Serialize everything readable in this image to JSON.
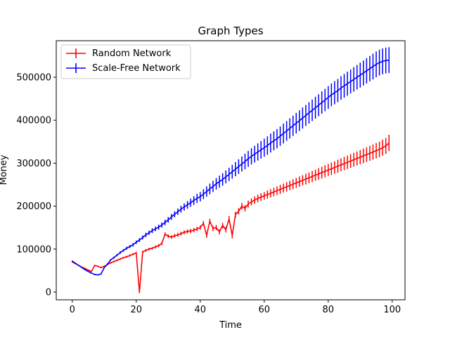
{
  "chart_data": {
    "type": "line",
    "title": "Graph Types",
    "xlabel": "Time",
    "ylabel": "Money",
    "xlim": [
      -5,
      104
    ],
    "ylim": [
      -18000,
      585000
    ],
    "xticks": [
      0,
      20,
      40,
      60,
      80,
      100
    ],
    "yticks": [
      0,
      100000,
      200000,
      300000,
      400000,
      500000
    ],
    "grid": false,
    "legend_position": "top-left",
    "series": [
      {
        "name": "Random Network",
        "color": "#ff0000",
        "x": [
          0,
          1,
          2,
          3,
          4,
          5,
          6,
          7,
          8,
          9,
          10,
          11,
          12,
          13,
          14,
          15,
          16,
          17,
          18,
          19,
          20,
          21,
          22,
          23,
          24,
          25,
          26,
          27,
          28,
          29,
          30,
          31,
          32,
          33,
          34,
          35,
          36,
          37,
          38,
          39,
          40,
          41,
          42,
          43,
          44,
          45,
          46,
          47,
          48,
          49,
          50,
          51,
          52,
          53,
          54,
          55,
          56,
          57,
          58,
          59,
          60,
          61,
          62,
          63,
          64,
          65,
          66,
          67,
          68,
          69,
          70,
          71,
          72,
          73,
          74,
          75,
          76,
          77,
          78,
          79,
          80,
          81,
          82,
          83,
          84,
          85,
          86,
          87,
          88,
          89,
          90,
          91,
          92,
          93,
          94,
          95,
          96,
          97,
          98,
          99
        ],
        "y": [
          70000,
          66000,
          62000,
          58000,
          55000,
          51000,
          48000,
          62000,
          60000,
          57000,
          60000,
          64000,
          68000,
          71000,
          74000,
          77000,
          80000,
          82000,
          85000,
          88000,
          91000,
          0,
          93000,
          97000,
          100000,
          102000,
          105000,
          108000,
          113000,
          135000,
          130000,
          128000,
          131000,
          133000,
          136000,
          139000,
          141000,
          142000,
          144000,
          147000,
          150000,
          160000,
          132000,
          165000,
          148000,
          150000,
          140000,
          155000,
          145000,
          170000,
          132000,
          180000,
          188000,
          200000,
          195000,
          205000,
          210000,
          214000,
          218000,
          221000,
          224000,
          227000,
          230000,
          233000,
          236000,
          239000,
          242000,
          245000,
          248000,
          251000,
          254000,
          257000,
          260000,
          263000,
          266000,
          269000,
          272000,
          275000,
          278000,
          281000,
          284000,
          287000,
          290000,
          293000,
          296000,
          299000,
          302000,
          305000,
          308000,
          311000,
          314000,
          317000,
          320000,
          323000,
          326000,
          329000,
          332000,
          336000,
          340000,
          347000
        ],
        "err": [
          1500,
          1500,
          1500,
          1500,
          1500,
          1500,
          1500,
          1500,
          1500,
          1500,
          1500,
          1500,
          2000,
          2000,
          2000,
          2000,
          2000,
          2500,
          2500,
          2500,
          2500,
          2500,
          3000,
          3000,
          3000,
          3000,
          3500,
          3500,
          3500,
          4000,
          4000,
          4000,
          4000,
          4500,
          4500,
          4500,
          4500,
          5000,
          5000,
          5000,
          5000,
          5500,
          5500,
          5500,
          5500,
          6000,
          6000,
          6000,
          6500,
          6500,
          7000,
          7000,
          7000,
          7500,
          7500,
          8000,
          8000,
          8500,
          8500,
          9000,
          9000,
          9500,
          9500,
          10000,
          10000,
          10500,
          10500,
          11000,
          11000,
          11500,
          11500,
          12000,
          12000,
          12500,
          12500,
          13000,
          13000,
          13500,
          13500,
          14000,
          14000,
          14500,
          14500,
          15000,
          15000,
          15500,
          15500,
          16000,
          16000,
          16500,
          16500,
          17000,
          17000,
          17500,
          17500,
          18000,
          18000,
          18500,
          18500,
          19000
        ]
      },
      {
        "name": "Scale-Free Network",
        "color": "#0000ff",
        "x": [
          0,
          1,
          2,
          3,
          4,
          5,
          6,
          7,
          8,
          9,
          10,
          11,
          12,
          13,
          14,
          15,
          16,
          17,
          18,
          19,
          20,
          21,
          22,
          23,
          24,
          25,
          26,
          27,
          28,
          29,
          30,
          31,
          32,
          33,
          34,
          35,
          36,
          37,
          38,
          39,
          40,
          41,
          42,
          43,
          44,
          45,
          46,
          47,
          48,
          49,
          50,
          51,
          52,
          53,
          54,
          55,
          56,
          57,
          58,
          59,
          60,
          61,
          62,
          63,
          64,
          65,
          66,
          67,
          68,
          69,
          70,
          71,
          72,
          73,
          74,
          75,
          76,
          77,
          78,
          79,
          80,
          81,
          82,
          83,
          84,
          85,
          86,
          87,
          88,
          89,
          90,
          91,
          92,
          93,
          94,
          95,
          96,
          97,
          98,
          99
        ],
        "y": [
          72000,
          67000,
          62000,
          57000,
          52000,
          48000,
          44000,
          41000,
          40000,
          42000,
          57000,
          65000,
          75000,
          80000,
          86000,
          92000,
          97000,
          102000,
          106000,
          110000,
          116000,
          121000,
          127000,
          133000,
          138000,
          143000,
          147000,
          151000,
          156000,
          162000,
          168000,
          175000,
          181000,
          187000,
          193000,
          198000,
          203000,
          208000,
          213000,
          218000,
          222000,
          228000,
          234000,
          240000,
          246000,
          252000,
          257000,
          262000,
          268000,
          274000,
          280000,
          286000,
          292000,
          298000,
          304000,
          310000,
          316000,
          321000,
          326000,
          331000,
          336000,
          341000,
          347000,
          352000,
          357000,
          363000,
          369000,
          375000,
          381000,
          387000,
          393000,
          399000,
          405000,
          411000,
          417000,
          423000,
          429000,
          435000,
          441000,
          447000,
          453000,
          459000,
          464000,
          469000,
          475000,
          480000,
          485000,
          490000,
          495000,
          500000,
          505000,
          510000,
          515000,
          520000,
          525000,
          530000,
          534000,
          537000,
          539000,
          540000
        ],
        "err": [
          1500,
          1500,
          1500,
          1500,
          1500,
          1500,
          1500,
          1500,
          1500,
          1500,
          1500,
          2000,
          2000,
          2500,
          2500,
          3000,
          3000,
          3500,
          3500,
          4000,
          4000,
          4500,
          4500,
          5000,
          5000,
          5500,
          5500,
          6000,
          6000,
          6500,
          6500,
          7000,
          7000,
          7500,
          8000,
          8500,
          9000,
          9500,
          10000,
          10500,
          11000,
          11500,
          12000,
          12500,
          13000,
          13500,
          14000,
          14500,
          15000,
          15500,
          16000,
          16500,
          17000,
          17500,
          18000,
          18500,
          19000,
          19500,
          20000,
          20500,
          21000,
          21500,
          22000,
          22000,
          22500,
          22500,
          23000,
          23000,
          23500,
          23500,
          24000,
          24000,
          24500,
          24500,
          25000,
          25000,
          25500,
          25500,
          26000,
          26000,
          26500,
          26500,
          27000,
          27000,
          27500,
          27500,
          28000,
          28000,
          28500,
          28500,
          29000,
          29000,
          29500,
          29500,
          30000,
          30000,
          30000,
          30000,
          30000,
          30000
        ]
      }
    ]
  }
}
